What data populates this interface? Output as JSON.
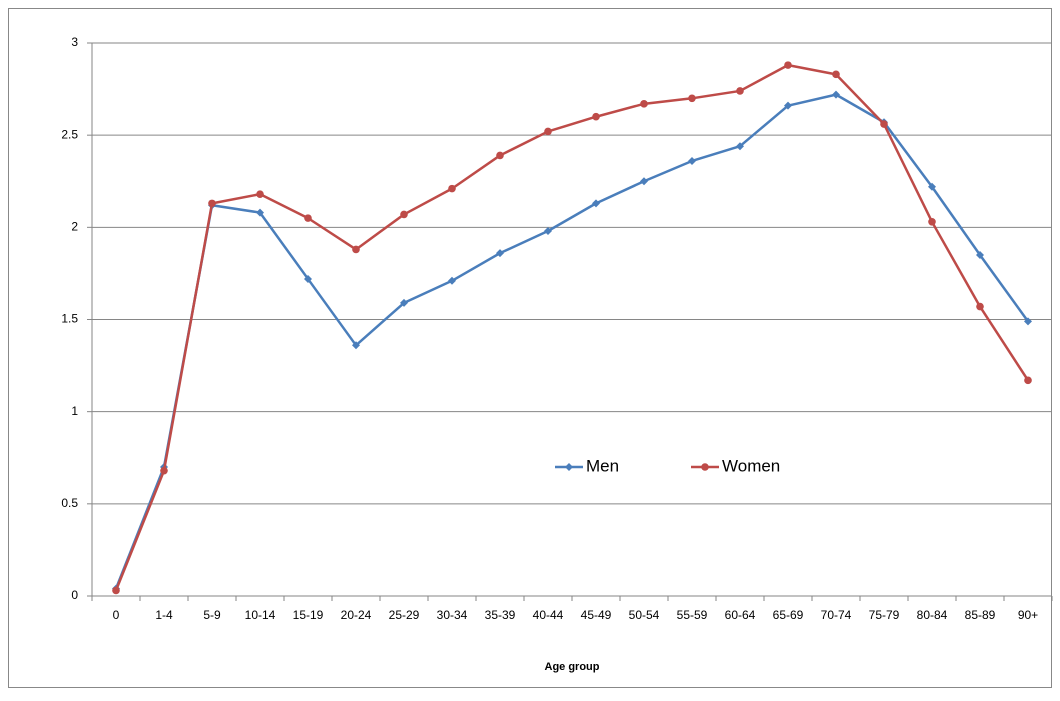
{
  "chart_data": {
    "type": "line",
    "x_label": "Age group",
    "categories": [
      "0",
      "1-4",
      "5-9",
      "10-14",
      "15-19",
      "20-24",
      "25-29",
      "30-34",
      "35-39",
      "40-44",
      "45-49",
      "50-54",
      "55-59",
      "60-64",
      "65-69",
      "70-74",
      "75-79",
      "80-84",
      "85-89",
      "90+"
    ],
    "series": [
      {
        "name": "Men",
        "color": "#4a7ebb",
        "marker": "diamond",
        "values": [
          0.04,
          0.7,
          2.12,
          2.08,
          1.72,
          1.36,
          1.59,
          1.71,
          1.86,
          1.98,
          2.13,
          2.25,
          2.36,
          2.44,
          2.66,
          2.72,
          2.57,
          2.22,
          1.85,
          1.49
        ]
      },
      {
        "name": "Women",
        "color": "#be4b48",
        "marker": "circle",
        "values": [
          0.03,
          0.68,
          2.13,
          2.18,
          2.05,
          1.88,
          2.07,
          2.21,
          2.39,
          2.52,
          2.6,
          2.67,
          2.7,
          2.74,
          2.88,
          2.83,
          2.56,
          2.03,
          1.57,
          1.17
        ]
      }
    ],
    "ylim": [
      0,
      3
    ],
    "yticks": [
      0,
      0.5,
      1,
      1.5,
      2,
      2.5,
      3
    ],
    "grid": true,
    "legend": "center"
  }
}
